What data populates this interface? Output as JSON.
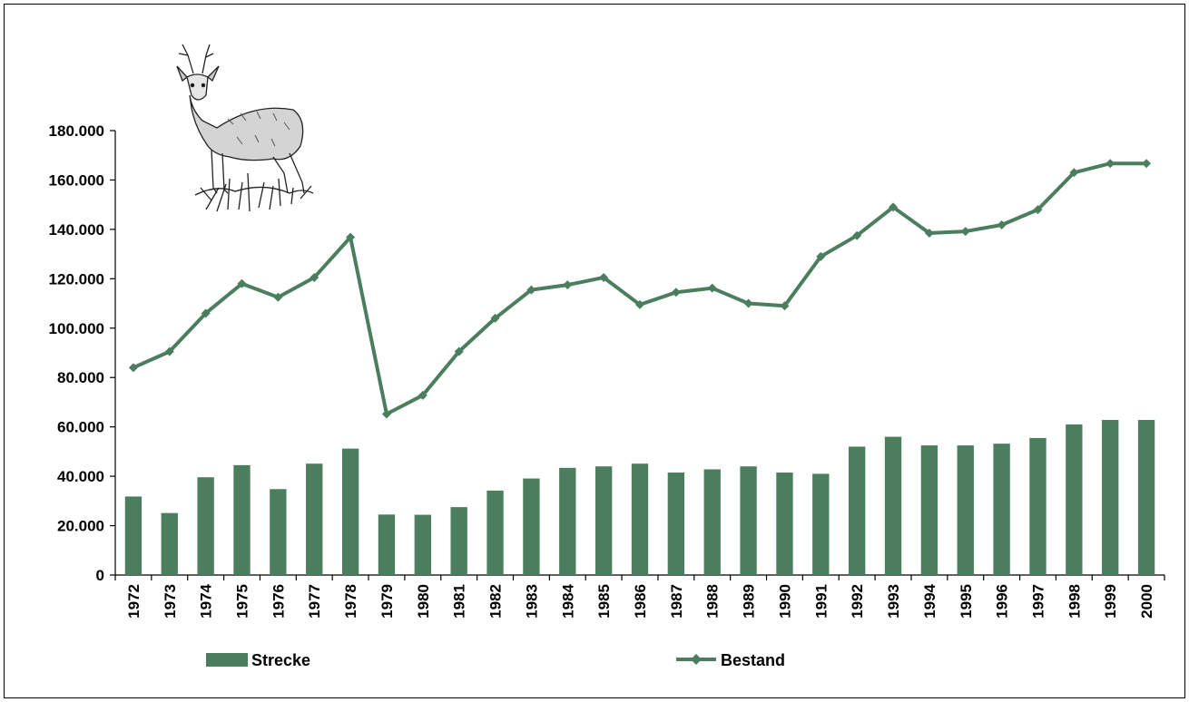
{
  "chart_data": {
    "type": "bar",
    "categories": [
      "1972",
      "1973",
      "1974",
      "1975",
      "1976",
      "1977",
      "1978",
      "1979",
      "1980",
      "1981",
      "1982",
      "1983",
      "1984",
      "1985",
      "1986",
      "1987",
      "1988",
      "1989",
      "1990",
      "1991",
      "1992",
      "1993",
      "1994",
      "1995",
      "1996",
      "1997",
      "1998",
      "1999",
      "2000"
    ],
    "series": [
      {
        "name": "Strecke",
        "type": "bar",
        "color": "#4b7d5f",
        "values": [
          31800,
          25100,
          39600,
          44500,
          34800,
          45100,
          51200,
          24500,
          24400,
          27500,
          34200,
          39100,
          43400,
          44000,
          45100,
          41500,
          42800,
          44000,
          41500,
          41000,
          52000,
          56000,
          52500,
          52500,
          53200,
          55500,
          61000,
          62800,
          62800
        ]
      },
      {
        "name": "Bestand",
        "type": "line",
        "color": "#4b7d5f",
        "marker": "diamond",
        "values": [
          84000,
          90500,
          106000,
          118000,
          112500,
          120500,
          136800,
          65200,
          72800,
          90500,
          104000,
          115500,
          117500,
          120500,
          109500,
          114500,
          116200,
          110000,
          109000,
          129000,
          137500,
          149000,
          138500,
          139200,
          141800,
          148000,
          163000,
          166700,
          166700
        ]
      }
    ],
    "yticks": [
      "0",
      "20.000",
      "40.000",
      "60.000",
      "80.000",
      "100.000",
      "120.000",
      "140.000",
      "160.000",
      "180.000"
    ],
    "ylim": [
      0,
      180000
    ],
    "grid": false,
    "legend": "bottom",
    "title": "",
    "xlabel": "",
    "ylabel": ""
  },
  "decoration": {
    "icon": "roe-deer-illustration"
  }
}
